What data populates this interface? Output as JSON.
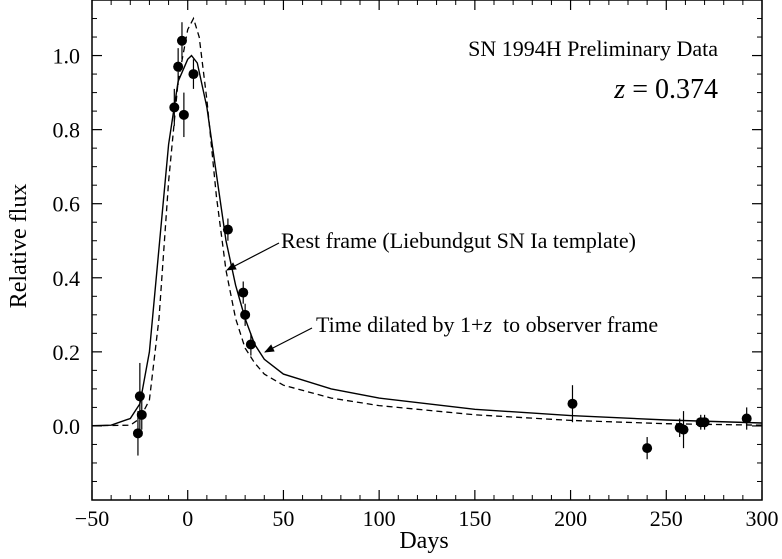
{
  "chart_data": {
    "type": "scatter",
    "title": "SN 1994H Preliminary Data",
    "subtitle": {
      "italic": "z",
      "rest": " = 0.374"
    },
    "xlabel": "Days",
    "ylabel": "Relative flux",
    "xlim": [
      -50,
      300
    ],
    "ylim": [
      -0.2,
      1.15
    ],
    "x_ticks_major": [
      -50,
      0,
      50,
      100,
      150,
      200,
      250,
      300
    ],
    "x_tick_labels": [
      "−50",
      "0",
      "50",
      "100",
      "150",
      "200",
      "250",
      "300"
    ],
    "y_ticks_major": [
      0.0,
      0.2,
      0.4,
      0.6,
      0.8,
      1.0
    ],
    "y_tick_labels": [
      "0.0",
      "0.2",
      "0.4",
      "0.6",
      "0.8",
      "1.0"
    ],
    "grid": false,
    "annotations": [
      {
        "id": "rest",
        "text": "Rest frame (Liebundgut SN Ia template)"
      },
      {
        "id": "dilated",
        "text_before": "Time dilated by 1+",
        "text_italic": "z",
        "text_after": "  to observer frame"
      }
    ],
    "series": [
      {
        "style": "points-with-errorbars",
        "points": [
          {
            "x": -26,
            "y": -0.02,
            "err": 0.06
          },
          {
            "x": -25,
            "y": 0.08,
            "err": 0.09
          },
          {
            "x": -24,
            "y": 0.03,
            "err": 0.04
          },
          {
            "x": -7,
            "y": 0.86,
            "err": 0.05
          },
          {
            "x": -5,
            "y": 0.97,
            "err": 0.05
          },
          {
            "x": -3,
            "y": 1.04,
            "err": 0.05
          },
          {
            "x": -2,
            "y": 0.84,
            "err": 0.06
          },
          {
            "x": 3,
            "y": 0.95,
            "err": 0.04
          },
          {
            "x": 21,
            "y": 0.53,
            "err": 0.03
          },
          {
            "x": 29,
            "y": 0.36,
            "err": 0.03
          },
          {
            "x": 30,
            "y": 0.3,
            "err": 0.03
          },
          {
            "x": 33,
            "y": 0.22,
            "err": 0.03
          },
          {
            "x": 201,
            "y": 0.06,
            "err": 0.05
          },
          {
            "x": 240,
            "y": -0.06,
            "err": 0.03
          },
          {
            "x": 257,
            "y": -0.005,
            "err": 0.025
          },
          {
            "x": 259,
            "y": -0.01,
            "err": 0.05
          },
          {
            "x": 268,
            "y": 0.01,
            "err": 0.02
          },
          {
            "x": 270,
            "y": 0.01,
            "err": 0.02
          },
          {
            "x": 292,
            "y": 0.02,
            "err": 0.03
          }
        ]
      },
      {
        "style": "solid-line",
        "x": [
          -55,
          -40,
          -30,
          -25,
          -20,
          -15,
          -10,
          -5,
          0,
          2,
          5,
          10,
          15,
          20,
          25,
          30,
          35,
          40,
          50,
          75,
          100,
          150,
          200,
          250,
          300
        ],
        "y": [
          0.0,
          0.002,
          0.02,
          0.06,
          0.2,
          0.48,
          0.76,
          0.93,
          0.99,
          1.0,
          0.98,
          0.86,
          0.68,
          0.5,
          0.38,
          0.29,
          0.22,
          0.18,
          0.14,
          0.1,
          0.075,
          0.045,
          0.028,
          0.016,
          0.008
        ]
      },
      {
        "style": "dashed-line",
        "x": [
          -55,
          -30,
          -25,
          -20,
          -15,
          -10,
          -5,
          0,
          3,
          6,
          10,
          15,
          20,
          25,
          30,
          35,
          40,
          50,
          75,
          100,
          150,
          200,
          250,
          300
        ],
        "y": [
          0.0,
          0.002,
          0.02,
          0.07,
          0.29,
          0.66,
          0.93,
          1.07,
          1.1,
          1.05,
          0.88,
          0.62,
          0.42,
          0.29,
          0.21,
          0.17,
          0.14,
          0.11,
          0.075,
          0.055,
          0.03,
          0.015,
          0.006,
          0.002
        ]
      }
    ]
  }
}
